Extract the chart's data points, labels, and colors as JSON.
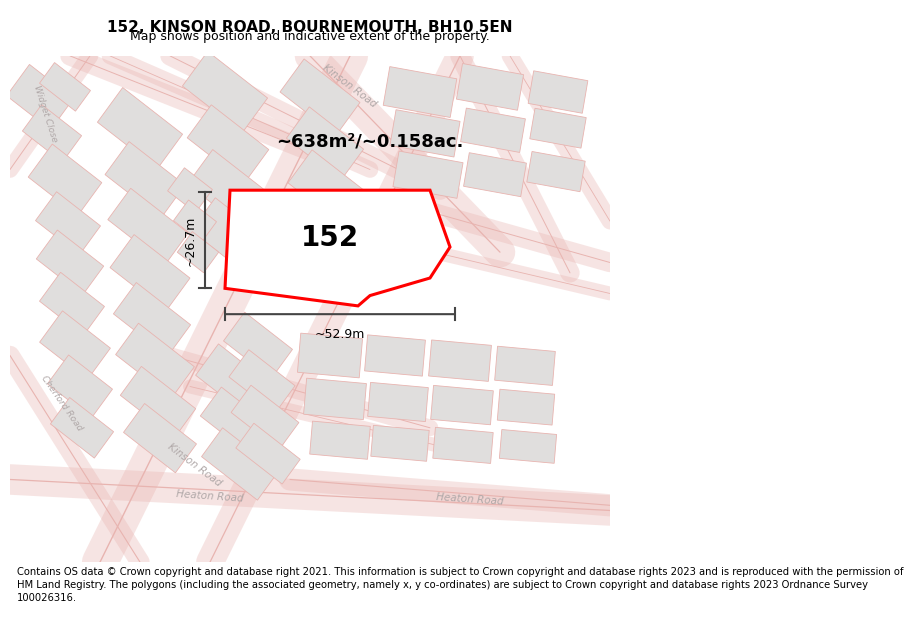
{
  "title_line1": "152, KINSON ROAD, BOURNEMOUTH, BH10 5EN",
  "title_line2": "Map shows position and indicative extent of the property.",
  "area_label": "~638m²/~0.158ac.",
  "number_label": "152",
  "dim_width": "~52.9m",
  "dim_height": "~26.7m",
  "map_bg": "#ffffff",
  "block_color": "#e0dedd",
  "road_fill_color": "#f5eeee",
  "road_line_color": "#e8b4b0",
  "highlight_color": "#ff0000",
  "road_label_color": "#b0a8a8",
  "title_fontsize": 11,
  "subtitle_fontsize": 9,
  "footer_fontsize": 7.5,
  "footer_lines": [
    "Contains OS data © Crown copyright and database right 2021. This information is subject to Crown copyright and database rights 2023 and is reproduced with the permission of",
    "HM Land Registry. The polygons (including the associated geometry, namely x, y co-ordinates) are subject to Crown copyright and database rights 2023 Ordnance Survey",
    "100026316."
  ]
}
